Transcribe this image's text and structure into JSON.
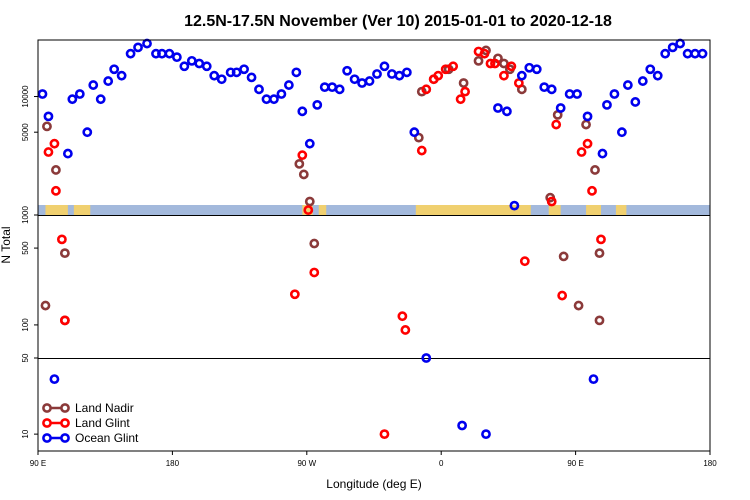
{
  "chart_data": {
    "type": "scatter",
    "title": "12.5N-17.5N November (Ver 10)   2015-01-01 to 2020-12-18",
    "xlabel": "Longitude (deg E)",
    "ylabel": "N Total",
    "x_ticks": [
      {
        "value": 90,
        "label": "90 E"
      },
      {
        "value": 180,
        "label": "180"
      },
      {
        "value": 270,
        "label": "90 W"
      },
      {
        "value": 360,
        "label": "0"
      },
      {
        "value": 450,
        "label": "90 E"
      },
      {
        "value": 540,
        "label": "180"
      }
    ],
    "xlim": [
      90,
      540
    ],
    "y_segments": [
      {
        "name": "low",
        "ylim": [
          7,
          50
        ],
        "ticks": [
          {
            "value": 10,
            "label": "10"
          },
          {
            "value": 50,
            "label": "50"
          }
        ]
      },
      {
        "name": "mid",
        "ylim": [
          50,
          1000
        ],
        "ticks": [
          {
            "value": 100,
            "label": "100"
          },
          {
            "value": 500,
            "label": "500"
          },
          {
            "value": 1000,
            "label": "1000"
          }
        ]
      },
      {
        "name": "high",
        "ylim": [
          1000,
          30000
        ],
        "ticks": [
          {
            "value": 5000,
            "label": "5000"
          },
          {
            "value": 10000,
            "label": "10000"
          }
        ]
      }
    ],
    "legend_position": "bottom-left",
    "series": [
      {
        "name": "Land Nadir",
        "color": "#8b3a3a",
        "points": [
          [
            96,
            5600
          ],
          [
            95,
            150
          ],
          [
            102,
            2400
          ],
          [
            108,
            450
          ],
          [
            108,
            110
          ],
          [
            265,
            2700
          ],
          [
            268,
            2200
          ],
          [
            272,
            1300
          ],
          [
            275,
            550
          ],
          [
            345,
            4500
          ],
          [
            347,
            11000
          ],
          [
            355,
            14000
          ],
          [
            365,
            17000
          ],
          [
            375,
            13000
          ],
          [
            385,
            20000
          ],
          [
            390,
            24500
          ],
          [
            398,
            21000
          ],
          [
            402,
            19000
          ],
          [
            406,
            17000
          ],
          [
            414,
            11500
          ],
          [
            433,
            1400
          ],
          [
            438,
            7000
          ],
          [
            442,
            420
          ],
          [
            452,
            150
          ],
          [
            457,
            5800
          ],
          [
            463,
            2400
          ],
          [
            466,
            450
          ],
          [
            466,
            110
          ]
        ]
      },
      {
        "name": "Land Glint",
        "color": "#ff0000",
        "points": [
          [
            97,
            3400
          ],
          [
            101,
            4000
          ],
          [
            102,
            1600
          ],
          [
            106,
            600
          ],
          [
            108,
            110
          ],
          [
            262,
            190
          ],
          [
            267,
            3200
          ],
          [
            271,
            1100
          ],
          [
            275,
            300
          ],
          [
            322,
            10
          ],
          [
            334,
            120
          ],
          [
            336,
            90
          ],
          [
            347,
            3500
          ],
          [
            350,
            11500
          ],
          [
            355,
            14000
          ],
          [
            358,
            15000
          ],
          [
            363,
            17000
          ],
          [
            368,
            18000
          ],
          [
            373,
            9500
          ],
          [
            376,
            11000
          ],
          [
            385,
            24000
          ],
          [
            389,
            23000
          ],
          [
            393,
            19000
          ],
          [
            396,
            19000
          ],
          [
            402,
            15000
          ],
          [
            407,
            18000
          ],
          [
            412,
            13000
          ],
          [
            416,
            380
          ],
          [
            434,
            1300
          ],
          [
            437,
            5800
          ],
          [
            441,
            185
          ],
          [
            454,
            3400
          ],
          [
            458,
            4000
          ],
          [
            461,
            1600
          ],
          [
            467,
            600
          ]
        ]
      },
      {
        "name": "Ocean Glint",
        "color": "#0000ee",
        "points": [
          [
            93,
            10500
          ],
          [
            97,
            6800
          ],
          [
            101,
            32
          ],
          [
            110,
            3300
          ],
          [
            113,
            9500
          ],
          [
            118,
            10500
          ],
          [
            123,
            5000
          ],
          [
            127,
            12500
          ],
          [
            132,
            9500
          ],
          [
            137,
            13500
          ],
          [
            141,
            17000
          ],
          [
            146,
            15000
          ],
          [
            152,
            23000
          ],
          [
            157,
            26000
          ],
          [
            163,
            28000
          ],
          [
            169,
            23000
          ],
          [
            173,
            23000
          ],
          [
            178,
            23000
          ],
          [
            183,
            21500
          ],
          [
            188,
            18000
          ],
          [
            193,
            20000
          ],
          [
            198,
            19000
          ],
          [
            203,
            18000
          ],
          [
            208,
            15000
          ],
          [
            213,
            14000
          ],
          [
            219,
            16000
          ],
          [
            223,
            16000
          ],
          [
            228,
            17000
          ],
          [
            233,
            14500
          ],
          [
            238,
            11500
          ],
          [
            243,
            9500
          ],
          [
            248,
            9500
          ],
          [
            253,
            10500
          ],
          [
            258,
            12500
          ],
          [
            263,
            16000
          ],
          [
            267,
            7500
          ],
          [
            272,
            4000
          ],
          [
            277,
            8500
          ],
          [
            282,
            12000
          ],
          [
            287,
            12000
          ],
          [
            292,
            11500
          ],
          [
            297,
            16500
          ],
          [
            302,
            14000
          ],
          [
            307,
            13000
          ],
          [
            312,
            13500
          ],
          [
            317,
            15500
          ],
          [
            322,
            18000
          ],
          [
            327,
            15500
          ],
          [
            332,
            15000
          ],
          [
            337,
            16000
          ],
          [
            342,
            5000
          ],
          [
            350,
            50
          ],
          [
            374,
            12
          ],
          [
            390,
            10
          ],
          [
            398,
            8000
          ],
          [
            404,
            7500
          ],
          [
            409,
            1200
          ],
          [
            414,
            15000
          ],
          [
            419,
            17500
          ],
          [
            424,
            17000
          ],
          [
            429,
            12000
          ],
          [
            434,
            11500
          ],
          [
            440,
            8000
          ],
          [
            446,
            10500
          ],
          [
            451,
            10500
          ],
          [
            458,
            6800
          ],
          [
            462,
            32
          ],
          [
            468,
            3300
          ],
          [
            471,
            8500
          ],
          [
            476,
            10500
          ],
          [
            481,
            5000
          ],
          [
            485,
            12500
          ],
          [
            490,
            9000
          ],
          [
            495,
            13500
          ],
          [
            500,
            17000
          ],
          [
            505,
            15000
          ],
          [
            510,
            23000
          ],
          [
            515,
            26000
          ],
          [
            520,
            28000
          ],
          [
            525,
            23000
          ],
          [
            530,
            23000
          ],
          [
            535,
            23000
          ]
        ]
      }
    ]
  }
}
